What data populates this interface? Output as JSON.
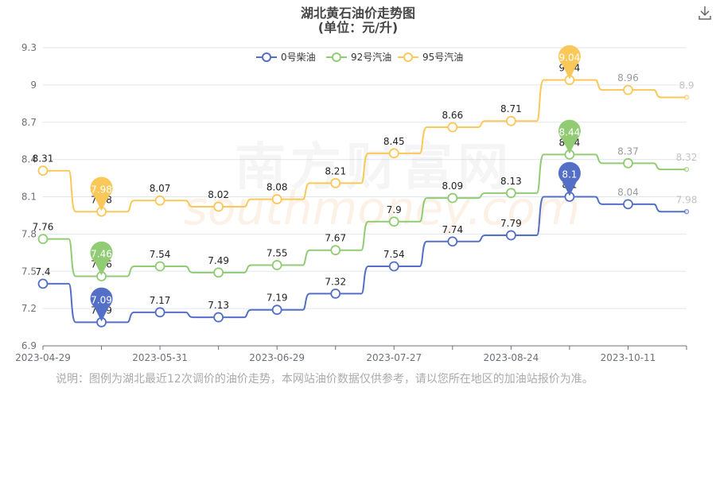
{
  "chart_data": {
    "type": "line",
    "title": "湖北黄石油价走势图",
    "subtitle": "(单位：元/升)",
    "ylim": [
      6.9,
      9.3
    ],
    "yticks": [
      "6.9",
      "7.2",
      "7.5",
      "7.8",
      "8.1",
      "8.4",
      "8.7",
      "9",
      "9.3"
    ],
    "x_tick_labels": [
      "2023-04-29",
      "2023-05-31",
      "2023-06-29",
      "2023-07-27",
      "2023-08-24",
      "2023-10-11"
    ],
    "series": [
      {
        "name": "0号柴油",
        "color": "#5470c6",
        "values": [
          7.4,
          7.09,
          7.17,
          7.13,
          7.19,
          7.32,
          7.54,
          7.74,
          7.79,
          8.1,
          8.04,
          7.98
        ],
        "marker": {
          "value": 8.1,
          "label": "8.1"
        },
        "marker_min": {
          "value": 7.09,
          "label": "7.09"
        }
      },
      {
        "name": "92号汽油",
        "color": "#91cc75",
        "values": [
          7.76,
          7.46,
          7.54,
          7.49,
          7.55,
          7.67,
          7.9,
          8.09,
          8.13,
          8.44,
          8.37,
          8.32
        ],
        "marker": {
          "value": 8.44,
          "label": "8.44"
        },
        "marker_min": {
          "value": 7.46,
          "label": "7.46"
        }
      },
      {
        "name": "95号汽油",
        "color": "#fac858",
        "values": [
          8.31,
          7.98,
          8.07,
          8.02,
          8.08,
          8.21,
          8.45,
          8.66,
          8.71,
          9.04,
          8.96,
          8.9
        ],
        "marker": {
          "value": 9.04,
          "label": "9.04"
        },
        "marker_min": {
          "value": 7.98,
          "label": "7.98"
        }
      }
    ]
  },
  "note": "说明：图例为湖北最近12次调价的油价走势，本网站油价数据仅供参考，请以您所在地区的加油站报价为准。",
  "watermark": {
    "cn": "南方财富网",
    "en": "southmoney.com"
  },
  "toolbar": {
    "download_icon": "download-icon"
  }
}
